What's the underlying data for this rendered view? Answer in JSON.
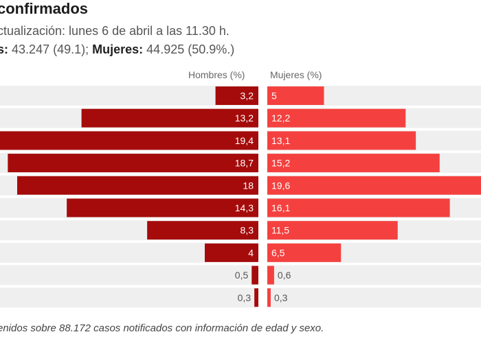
{
  "header": {
    "title": "confirmados",
    "subtitle": "ctualización: lunes 6 de abril a las 11.30 h.",
    "totals": {
      "men_label": "s:",
      "men_value": "43.247 (49.1);",
      "women_label": "Mujeres:",
      "women_value": "44.925 (50.9%.)"
    }
  },
  "columns": {
    "men_header": "Hombres (%)",
    "women_header": "Mujeres (%)"
  },
  "note": "enidos sobre 88.172 casos notificados con información de edad y sexo.",
  "colors": {
    "men": "#a50b0b",
    "women": "#f4413f",
    "row_band": "#efefef",
    "label_inside": "#ffffff",
    "label_outside": "#555555"
  },
  "chart_data": {
    "type": "bar",
    "orientation": "horizontal-diverging",
    "categories": [
      "",
      "",
      "",
      "",
      "",
      "",
      "",
      "",
      "",
      ""
    ],
    "series": [
      {
        "name": "Hombres (%)",
        "values": [
          3.2,
          13.2,
          19.4,
          18.7,
          18,
          14.3,
          8.3,
          4,
          0.5,
          0.3
        ],
        "labels": [
          "3,2",
          "13,2",
          "19,4",
          "18,7",
          "18",
          "14,3",
          "8,3",
          "4",
          "0,5",
          "0,3"
        ]
      },
      {
        "name": "Mujeres (%)",
        "values": [
          5,
          12.2,
          13.1,
          15.2,
          19.6,
          16.1,
          11.5,
          6.5,
          0.6,
          0.3
        ],
        "labels": [
          "5",
          "12,2",
          "13,1",
          "15,2",
          "19,6",
          "16,1",
          "11,5",
          "6,5",
          "0,6",
          "0,3"
        ]
      }
    ],
    "xlabel": "",
    "ylabel": "",
    "grid": false,
    "legend": "top-center"
  }
}
